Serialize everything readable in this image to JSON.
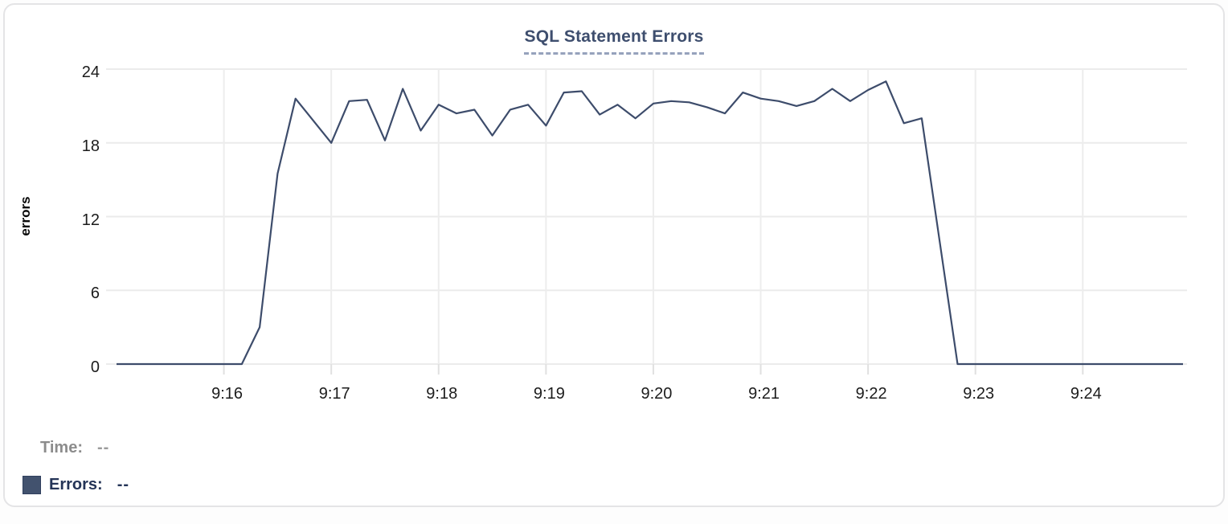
{
  "title": "SQL Statement Errors",
  "legend": {
    "time_label": "Time:",
    "time_value": "--",
    "errors_label": "Errors:",
    "errors_value": "--",
    "swatch_color": "#42526e"
  },
  "chart_data": {
    "type": "line",
    "title": "SQL Statement Errors",
    "xlabel": "",
    "ylabel": "errors",
    "ylim": [
      0,
      24
    ],
    "y_ticks": [
      0,
      6,
      12,
      18,
      24
    ],
    "x_tick_labels": [
      "9:16",
      "9:17",
      "9:18",
      "9:19",
      "9:20",
      "9:21",
      "9:22",
      "9:23",
      "9:24"
    ],
    "x_domain": [
      "9:15:00",
      "9:24:56"
    ],
    "sample_interval_seconds": 10,
    "grid": true,
    "legend_position": "bottom-left",
    "line_color": "#3d4c6b",
    "series": [
      {
        "name": "Errors",
        "times": [
          "9:15:00",
          "9:15:10",
          "9:15:20",
          "9:15:30",
          "9:15:40",
          "9:15:50",
          "9:16:00",
          "9:16:10",
          "9:16:20",
          "9:16:30",
          "9:16:40",
          "9:16:50",
          "9:17:00",
          "9:17:10",
          "9:17:20",
          "9:17:30",
          "9:17:40",
          "9:17:50",
          "9:18:00",
          "9:18:10",
          "9:18:20",
          "9:18:30",
          "9:18:40",
          "9:18:50",
          "9:19:00",
          "9:19:10",
          "9:19:20",
          "9:19:30",
          "9:19:40",
          "9:19:50",
          "9:20:00",
          "9:20:10",
          "9:20:20",
          "9:20:30",
          "9:20:40",
          "9:20:50",
          "9:21:00",
          "9:21:10",
          "9:21:20",
          "9:21:30",
          "9:21:40",
          "9:21:50",
          "9:22:00",
          "9:22:10",
          "9:22:20",
          "9:22:30",
          "9:22:40",
          "9:22:50",
          "9:23:00",
          "9:23:10",
          "9:23:20",
          "9:23:30",
          "9:23:40",
          "9:23:50",
          "9:24:00",
          "9:24:10",
          "9:24:20",
          "9:24:30",
          "9:24:40",
          "9:24:50",
          "9:24:56"
        ],
        "values": [
          0,
          0,
          0,
          0,
          0,
          0,
          0,
          0,
          3,
          15.5,
          21.6,
          19.8,
          18,
          21.4,
          21.5,
          18.2,
          22.4,
          19,
          21.1,
          20.4,
          20.7,
          18.6,
          20.7,
          21.1,
          19.4,
          22.1,
          22.2,
          20.3,
          21.1,
          20,
          21.2,
          21.4,
          21.3,
          20.9,
          20.4,
          22.1,
          21.6,
          21.4,
          21,
          21.4,
          22.4,
          21.4,
          22.3,
          23,
          19.6,
          20,
          10,
          0,
          0,
          0,
          0,
          0,
          0,
          0,
          0,
          0,
          0,
          0,
          0,
          0,
          0
        ]
      }
    ]
  }
}
